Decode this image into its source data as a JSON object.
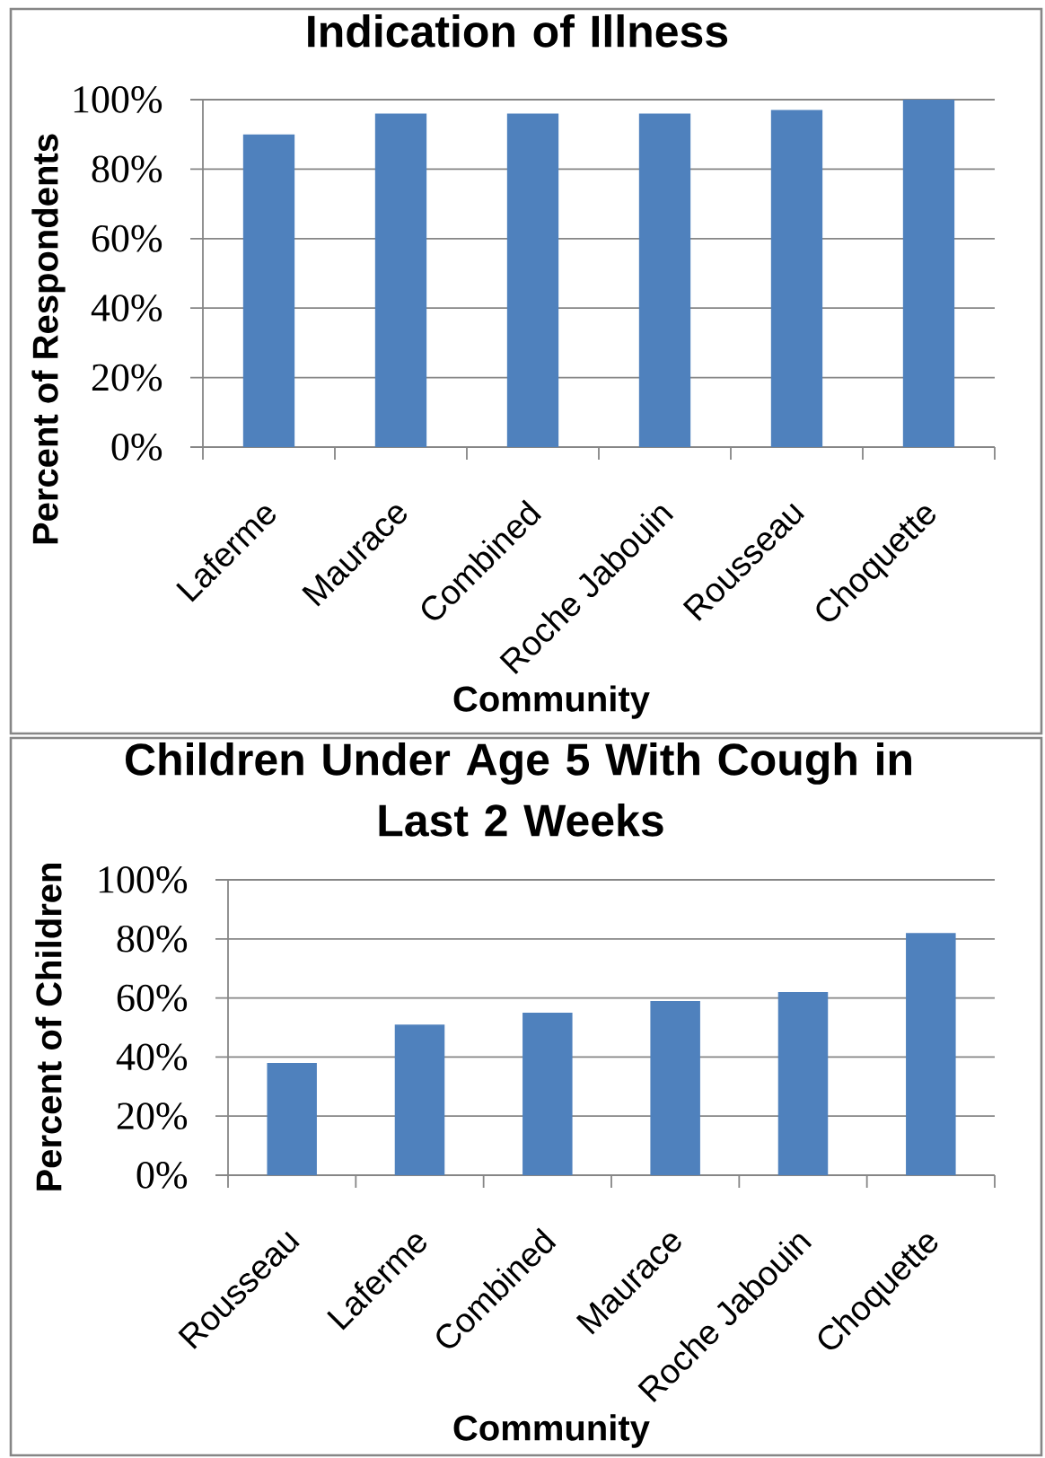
{
  "chart_data": [
    {
      "type": "bar",
      "title": "Indication of Illness",
      "xlabel": "Community",
      "ylabel": "Percent of Respondents",
      "categories": [
        "Laferme",
        "Maurace",
        "Combined",
        "Roche Jabouin",
        "Rousseau",
        "Choquette"
      ],
      "values": [
        90,
        96,
        96,
        96,
        97,
        100
      ],
      "color": "#4f81bd",
      "ylim": [
        0,
        100
      ],
      "yticks": [
        {
          "value": 0,
          "label": "0%"
        },
        {
          "value": 20,
          "label": "20%"
        },
        {
          "value": 40,
          "label": "40%"
        },
        {
          "value": 60,
          "label": "60%"
        },
        {
          "value": 80,
          "label": "80%"
        },
        {
          "value": 100,
          "label": "100%"
        }
      ],
      "grid": "y"
    },
    {
      "type": "bar",
      "title": "Children Under Age 5 With Cough in Last 2 Weeks",
      "xlabel": "Community",
      "ylabel": "Percent of Children",
      "categories": [
        "Rousseau",
        "Laferme",
        "Combined",
        "Maurace",
        "Roche Jabouin",
        "Choquette"
      ],
      "values": [
        38,
        51,
        55,
        59,
        62,
        82
      ],
      "color": "#4f81bd",
      "ylim": [
        0,
        100
      ],
      "yticks": [
        {
          "value": 0,
          "label": "0%"
        },
        {
          "value": 20,
          "label": "20%"
        },
        {
          "value": 40,
          "label": "40%"
        },
        {
          "value": 60,
          "label": "60%"
        },
        {
          "value": 80,
          "label": "80%"
        },
        {
          "value": 100,
          "label": "100%"
        }
      ],
      "grid": "y"
    }
  ]
}
